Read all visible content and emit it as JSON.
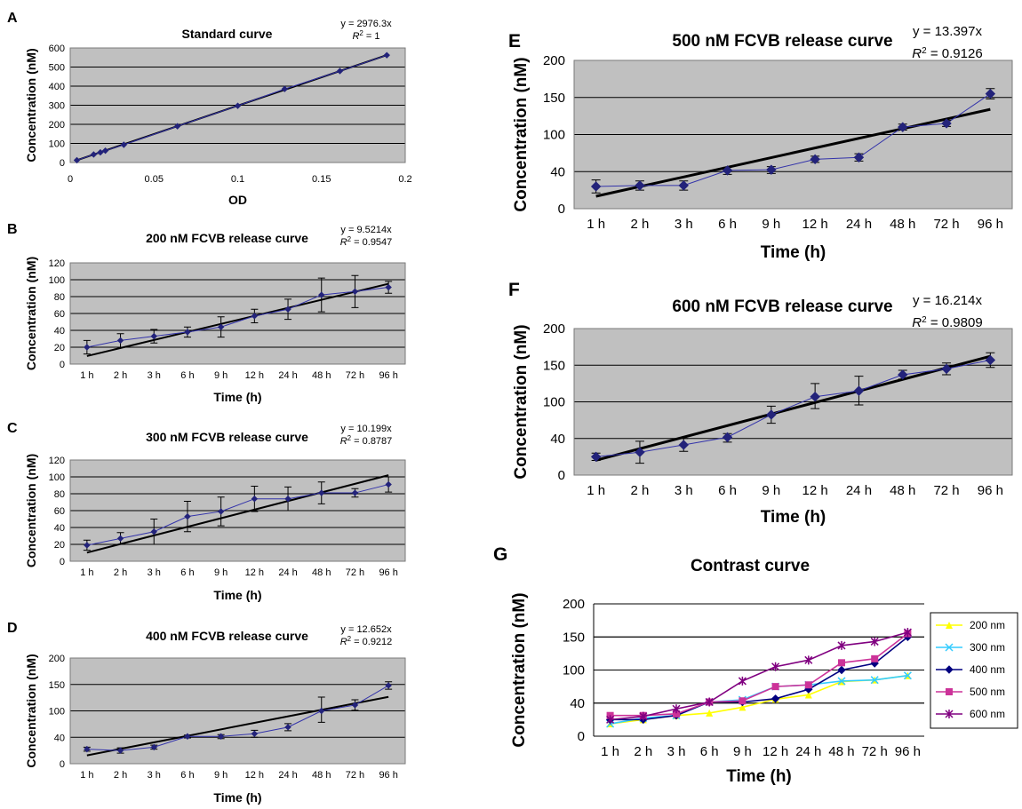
{
  "chart_data": [
    {
      "panel": "A",
      "type": "scatter",
      "title": "Standard curve",
      "xlabel": "OD",
      "ylabel": "Concentration (nM)",
      "xlim": [
        0,
        0.2
      ],
      "ylim": [
        0,
        600
      ],
      "x_ticks": [
        "0",
        "0.05",
        "0.1",
        "0.15",
        "0.2"
      ],
      "y_ticks": [
        "0",
        "100",
        "200",
        "300",
        "400",
        "500",
        "600"
      ],
      "x": [
        0.004,
        0.014,
        0.018,
        0.021,
        0.032,
        0.064,
        0.1,
        0.128,
        0.161,
        0.189
      ],
      "values": [
        12,
        42,
        53,
        62,
        93,
        190,
        297,
        385,
        479,
        562
      ],
      "trendline": {
        "slope": 2976.3,
        "intercept": 0
      },
      "equation": "y = 2976.3x",
      "r2_prefix": "R",
      "r2_value": " = 1",
      "grid": true
    },
    {
      "panel": "B",
      "type": "line",
      "title": "200 nM FCVB release curve",
      "xlabel": "Time (h)",
      "ylabel": "Concentration (nM)",
      "ylim": [
        0,
        120
      ],
      "categories": [
        "1 h",
        "2 h",
        "3 h",
        "6 h",
        "9 h",
        "12 h",
        "24 h",
        "48 h",
        "72 h",
        "96 h"
      ],
      "y_ticks": [
        "0",
        "20",
        "40",
        "60",
        "80",
        "100",
        "120"
      ],
      "values": [
        20,
        28,
        33,
        38,
        44,
        57,
        65,
        82,
        86,
        91
      ],
      "errors": [
        8,
        8,
        8,
        6,
        12,
        8,
        12,
        20,
        19,
        7
      ],
      "trendline": {
        "slope": 9.5214,
        "intercept": 0
      },
      "equation": "y = 9.5214x",
      "r2_prefix": "R",
      "r2_value": " = 0.9547",
      "grid": true
    },
    {
      "panel": "C",
      "type": "line",
      "title": "300 nM FCVB release curve",
      "xlabel": "Time (h)",
      "ylabel": "Concentration (nM)",
      "ylim": [
        0,
        120
      ],
      "categories": [
        "1 h",
        "2 h",
        "3 h",
        "6 h",
        "9 h",
        "12 h",
        "24 h",
        "48 h",
        "72 h",
        "96 h"
      ],
      "y_ticks": [
        "0",
        "20",
        "40",
        "60",
        "80",
        "100",
        "120"
      ],
      "values": [
        19,
        27,
        35,
        53,
        59,
        74,
        74,
        81,
        81,
        91
      ],
      "errors": [
        6,
        7,
        15,
        18,
        17,
        15,
        14,
        13,
        5,
        9
      ],
      "trendline": {
        "slope": 10.199,
        "intercept": 0
      },
      "equation": "y = 10.199x",
      "r2_prefix": "R",
      "r2_value": " = 0.8787",
      "grid": true
    },
    {
      "panel": "D",
      "type": "line",
      "title": "400 nM FCVB release curve",
      "xlabel": "Time (h)",
      "ylabel": "Concentration (nM)",
      "ylim": [
        0,
        200
      ],
      "categories": [
        "1 h",
        "2 h",
        "3 h",
        "6 h",
        "9 h",
        "12 h",
        "24 h",
        "48 h",
        "72 h",
        "96 h"
      ],
      "y_ticks": [
        "0",
        "40",
        "100",
        "150",
        "200"
      ],
      "values": [
        22,
        20,
        25,
        42,
        42,
        48,
        63,
        100,
        111,
        148
      ],
      "errors": [
        3,
        4,
        3,
        3,
        4,
        8,
        8,
        26,
        10,
        7
      ],
      "trendline": {
        "slope": 12.652,
        "intercept": 0
      },
      "equation": "y = 12.652x",
      "r2_prefix": "R",
      "r2_value": " = 0.9212",
      "grid": true
    },
    {
      "panel": "E",
      "type": "line",
      "title": "500 nM FCVB release curve",
      "xlabel": "Time (h)",
      "ylabel": "Concentration (nM)",
      "ylim": [
        0,
        200
      ],
      "categories": [
        "1 h",
        "2 h",
        "3 h",
        "6 h",
        "9 h",
        "12 h",
        "24 h",
        "48 h",
        "72 h",
        "96 h"
      ],
      "y_ticks": [
        "0",
        "40",
        "100",
        "150",
        "200"
      ],
      "values": [
        24,
        25,
        25,
        42,
        43,
        60,
        63,
        110,
        115,
        155
      ],
      "errors": [
        7,
        5,
        5,
        5,
        5,
        5,
        6,
        4,
        4,
        7
      ],
      "trendline": {
        "slope": 13.397,
        "intercept": 0
      },
      "equation": "y = 13.397x",
      "r2_prefix": "R",
      "r2_value": " = 0.9126",
      "grid": true
    },
    {
      "panel": "F",
      "type": "line",
      "title": "600 nM FCVB release curve",
      "xlabel": "Time (h)",
      "ylabel": "Concentration (nM)",
      "ylim": [
        0,
        200
      ],
      "categories": [
        "1 h",
        "2 h",
        "3 h",
        "6 h",
        "9 h",
        "12 h",
        "24 h",
        "48 h",
        "72 h",
        "96 h"
      ],
      "y_ticks": [
        "0",
        "40",
        "100",
        "150",
        "200"
      ],
      "values": [
        20,
        25,
        33,
        42,
        79,
        107,
        115,
        137,
        145,
        157
      ],
      "errors": [
        4,
        12,
        7,
        6,
        14,
        18,
        20,
        6,
        8,
        10
      ],
      "trendline": {
        "slope": 16.214,
        "intercept": 0
      },
      "equation": "y = 16.214x",
      "r2_prefix": "R",
      "r2_value": " = 0.9809",
      "grid": true
    },
    {
      "panel": "G",
      "type": "line",
      "title": "Contrast curve",
      "xlabel": "Time (h)",
      "ylabel": "Concentration (nM)",
      "ylim": [
        0,
        200
      ],
      "categories": [
        "1 h",
        "2 h",
        "3 h",
        "6 h",
        "9 h",
        "12 h",
        "24 h",
        "48 h",
        "72 h",
        "96 h"
      ],
      "y_ticks": [
        "0",
        "40",
        "100",
        "150",
        "200"
      ],
      "legend_position": "right",
      "series": [
        {
          "name": "200 nm",
          "color": "#ffff00",
          "marker": "triangle",
          "values": [
            15,
            20,
            25,
            28,
            35,
            47,
            55,
            79,
            82,
            90
          ]
        },
        {
          "name": "300 nm",
          "color": "#33ccff",
          "marker": "x",
          "values": [
            15,
            22,
            25,
            42,
            46,
            70,
            73,
            80,
            82,
            90
          ]
        },
        {
          "name": "400 nm",
          "color": "#000080",
          "marker": "diamond",
          "values": [
            20,
            20,
            25,
            42,
            42,
            48,
            65,
            100,
            110,
            150
          ]
        },
        {
          "name": "500 nm",
          "color": "#cc3399",
          "marker": "square",
          "values": [
            25,
            25,
            27,
            42,
            44,
            70,
            73,
            111,
            117,
            155
          ]
        },
        {
          "name": "600 nm",
          "color": "#800080",
          "marker": "star",
          "values": [
            20,
            24,
            33,
            42,
            80,
            105,
            115,
            137,
            143,
            157
          ]
        }
      ],
      "grid": true
    }
  ]
}
